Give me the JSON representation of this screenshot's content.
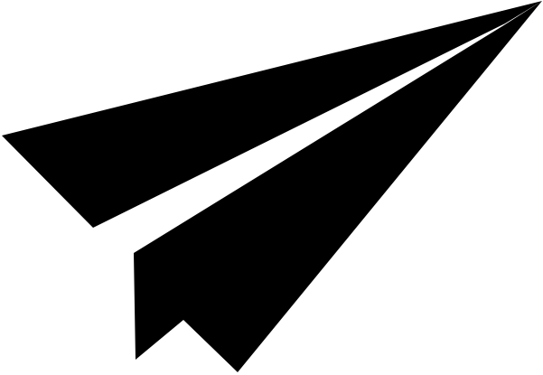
{
  "icon": {
    "name": "paper-plane-icon",
    "color": "#000000",
    "background": "#ffffff"
  }
}
